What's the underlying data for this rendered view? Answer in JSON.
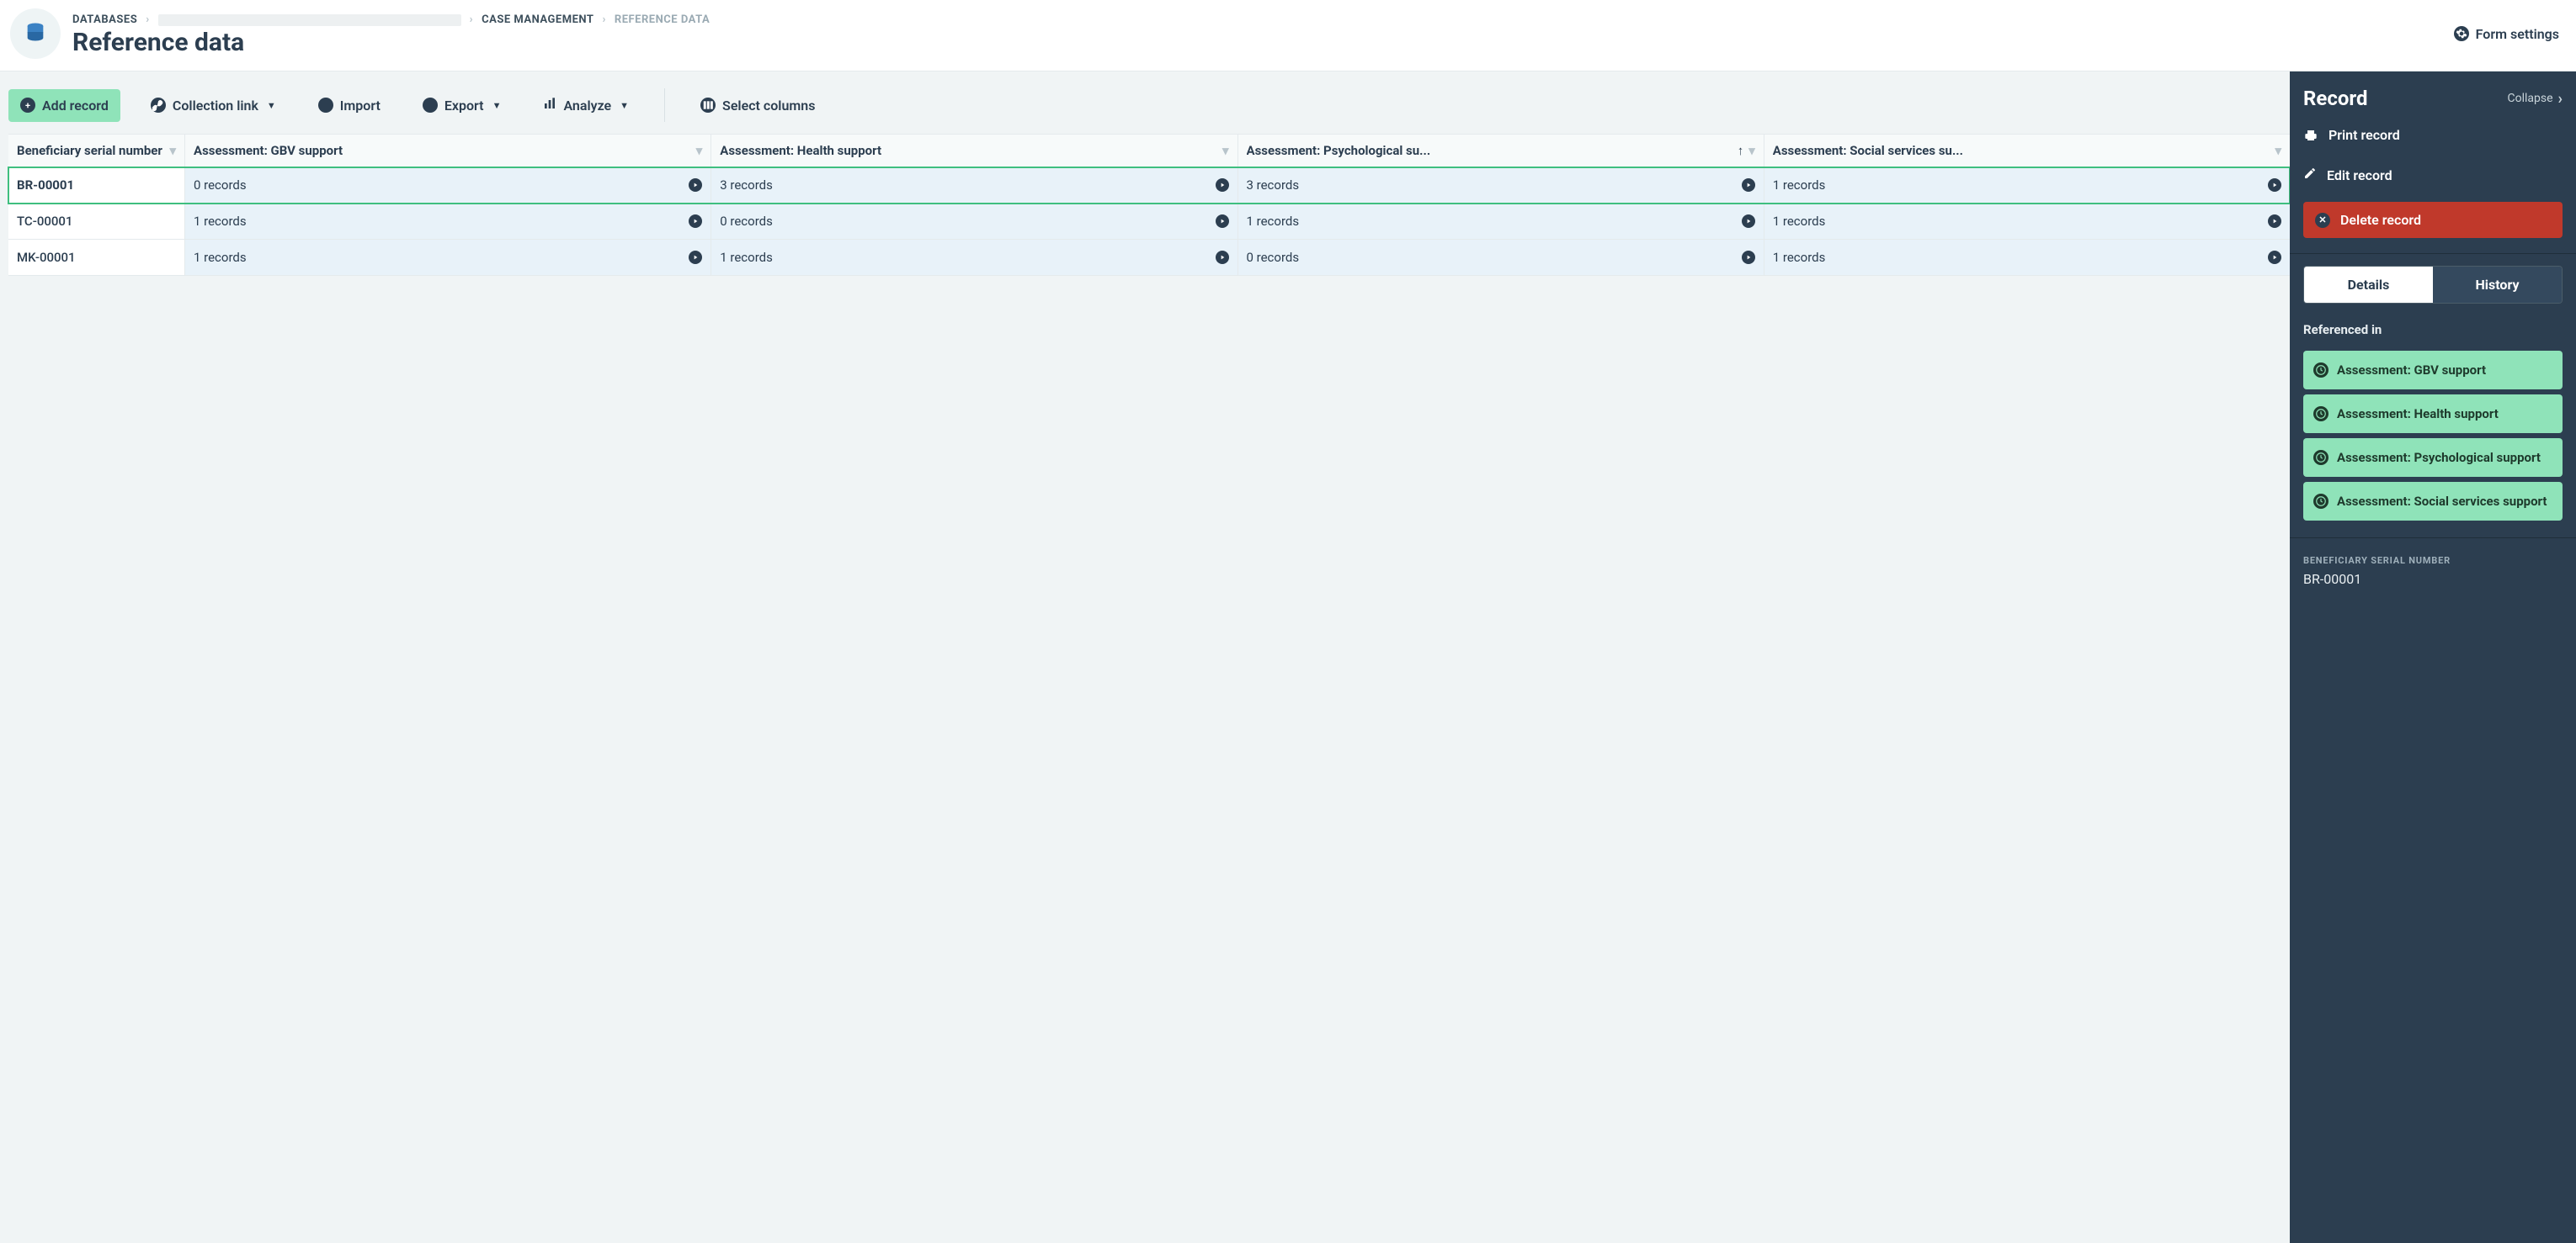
{
  "header": {
    "breadcrumbs": {
      "b1": "DATABASES",
      "b3": "CASE MANAGEMENT",
      "b4": "REFERENCE DATA"
    },
    "page_title": "Reference data",
    "form_settings_label": "Form settings"
  },
  "toolbar": {
    "add_record": "Add record",
    "collection_link": "Collection link",
    "import": "Import",
    "export": "Export",
    "analyze": "Analyze",
    "select_columns": "Select columns"
  },
  "table": {
    "columns": {
      "c0": "Beneficiary serial number",
      "c1": "Assessment: GBV support",
      "c2": "Assessment: Health support",
      "c3": "Assessment: Psychological su...",
      "c4": "Assessment: Social services su..."
    },
    "rows": [
      {
        "serial": "BR-00001",
        "c1": "0 records",
        "c2": "3 records",
        "c3": "3 records",
        "c4": "1 records",
        "selected": true
      },
      {
        "serial": "TC-00001",
        "c1": "1 records",
        "c2": "0 records",
        "c3": "1 records",
        "c4": "1 records",
        "selected": false
      },
      {
        "serial": "MK-00001",
        "c1": "1 records",
        "c2": "1 records",
        "c3": "0 records",
        "c4": "1 records",
        "selected": false
      }
    ]
  },
  "panel": {
    "title": "Record",
    "collapse": "Collapse",
    "print": "Print record",
    "edit": "Edit record",
    "delete": "Delete record",
    "tabs": {
      "details": "Details",
      "history": "History"
    },
    "referenced_in_label": "Referenced in",
    "refs": [
      "Assessment: GBV support",
      "Assessment: Health support",
      "Assessment: Psychological support",
      "Assessment: Social services support"
    ],
    "field_label": "BENEFICIARY SERIAL NUMBER",
    "field_value": "BR-00001"
  },
  "colors": {
    "accent_green": "#8fe3b9",
    "panel_bg": "#2c3e50",
    "danger": "#c0392b",
    "cell_bg": "#e8f2f9"
  }
}
